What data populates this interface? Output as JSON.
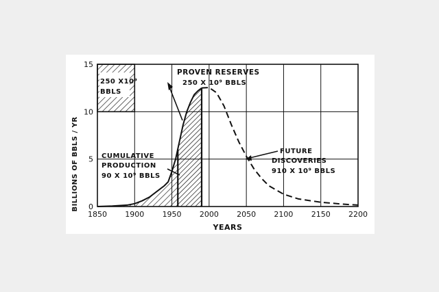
{
  "chart_data": {
    "type": "area",
    "title": "",
    "xlabel": "YEARS",
    "ylabel": "BILLIONS OF BBLS / YR",
    "xlim": [
      1850,
      2200
    ],
    "ylim": [
      0,
      15
    ],
    "x_ticks": [
      "1850",
      "1900",
      "1950",
      "2000",
      "2050",
      "2100",
      "2150",
      "2200"
    ],
    "y_ticks": [
      "0",
      "5",
      "10",
      "15"
    ],
    "grid": true,
    "series": [
      {
        "name": "",
        "style": "solid",
        "x": [
          1850,
          1870,
          1890,
          1900,
          1910,
          1920,
          1930,
          1940,
          1945,
          1950,
          1955,
          1960,
          1965,
          1970,
          1975,
          1980,
          1985,
          1990
        ],
        "y": [
          0,
          0.05,
          0.15,
          0.3,
          0.6,
          1.0,
          1.6,
          2.2,
          2.6,
          3.7,
          5.0,
          6.8,
          8.6,
          10.0,
          11.0,
          11.8,
          12.2,
          12.5
        ]
      },
      {
        "name": "",
        "style": "dashed",
        "x": [
          1990,
          2000,
          2010,
          2020,
          2030,
          2040,
          2050,
          2060,
          2070,
          2080,
          2100,
          2120,
          2150,
          2180,
          2200
        ],
        "y": [
          12.5,
          12.55,
          12.0,
          10.6,
          8.6,
          6.8,
          5.3,
          4.0,
          3.0,
          2.2,
          1.3,
          0.8,
          0.45,
          0.25,
          0.15
        ]
      }
    ],
    "regions": [
      {
        "name": "cumulative-production",
        "x_range": [
          1850,
          1958
        ],
        "fill": "hatch"
      },
      {
        "name": "proven-reserves",
        "x_range": [
          1958,
          1990
        ],
        "fill": "hatch"
      }
    ],
    "annotations": {
      "legend_box": [
        "250 X10⁹",
        "BBLS"
      ],
      "proven_reserves": [
        "PROVEN RESERVES",
        "250 X 10⁹ BBLS"
      ],
      "cumulative_production": [
        "CUMULATIVE",
        "PRODUCTION",
        "90 X 10⁹ BBLS"
      ],
      "future_discoveries": [
        "FUTURE",
        "DISCOVERIES",
        "910 X 10⁹ BBLS"
      ]
    }
  }
}
